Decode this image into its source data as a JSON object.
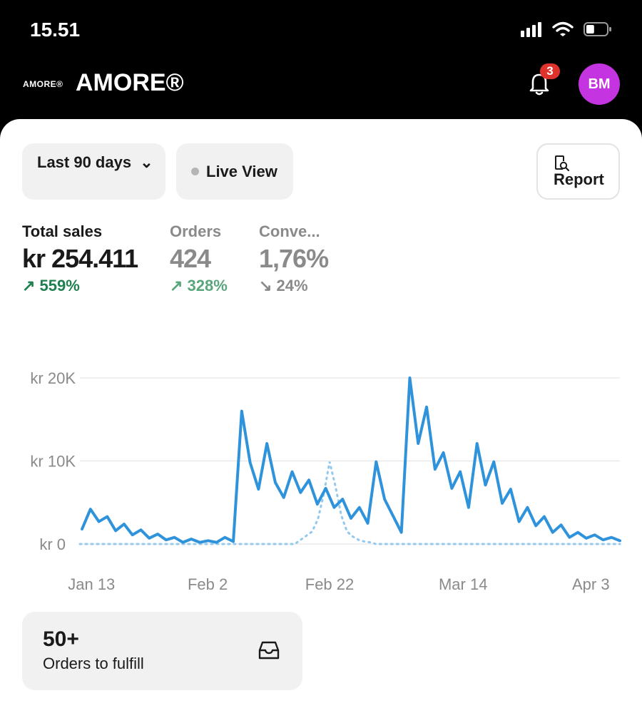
{
  "status_bar": {
    "time": "15.51",
    "battery_level": 0.4
  },
  "header": {
    "logo_text": "AMORE®",
    "store_name": "AMORE®",
    "notification_count": "3",
    "avatar_initials": "BM"
  },
  "colors": {
    "accent": "#2f93dc",
    "badge": "#e0322d",
    "avatar": "#c434e0",
    "positive": "#1e7f4f"
  },
  "filters": {
    "date_range": "Last 90 days",
    "live_view": "Live View",
    "report": "Report"
  },
  "metrics": [
    {
      "label": "Total sales",
      "value": "kr 254.411",
      "change": "↗ 559%"
    },
    {
      "label": "Orders",
      "value": "424",
      "change": "↗ 328%"
    },
    {
      "label": "Conve...",
      "value": "1,76%",
      "change": "↘ 24%"
    }
  ],
  "chart_data": {
    "type": "line",
    "y_tick_labels": [
      "kr 20K",
      "kr 10K",
      "kr 0"
    ],
    "y_ticks": [
      20000,
      10000,
      0
    ],
    "x_tick_labels": [
      "Jan 13",
      "Feb 2",
      "Feb 22",
      "Mar 14",
      "Apr 3"
    ],
    "x_tick_index": [
      2,
      22,
      43,
      66,
      88
    ],
    "ylim": [
      0,
      20000
    ],
    "grid": true,
    "series": [
      {
        "style": "solid",
        "values": [
          1800,
          4200,
          2700,
          3300,
          1600,
          2400,
          1100,
          1700,
          700,
          1200,
          500,
          800,
          200,
          600,
          200,
          400,
          200,
          800,
          300,
          16000,
          9800,
          6600,
          12100,
          7400,
          5600,
          8700,
          6200,
          7700,
          4800,
          6700,
          4400,
          5400,
          3100,
          4400,
          2500,
          9900,
          5400,
          3400,
          1400,
          20000,
          12100,
          16500,
          9000,
          11000,
          6700,
          8700,
          4400,
          12100,
          7100,
          9900,
          4900,
          6600,
          2700,
          4400,
          2200,
          3300,
          1400,
          2300,
          800,
          1400,
          700,
          1100,
          500,
          800,
          400
        ],
        "index_of_first_value": 0
      },
      {
        "style": "dotted",
        "values": [
          0,
          0,
          0,
          0,
          0,
          0,
          0,
          0,
          0,
          0,
          0,
          0,
          0,
          0,
          0,
          0,
          0,
          0,
          0,
          0,
          0,
          0,
          0,
          0,
          0,
          0,
          0,
          0,
          0,
          0,
          0,
          0,
          0,
          0,
          0,
          0,
          0,
          0,
          0,
          0,
          0,
          0,
          0,
          0,
          0,
          0,
          0,
          0,
          0,
          0,
          0,
          0,
          0,
          0,
          0,
          0,
          0,
          0,
          0,
          0,
          0,
          0,
          0,
          0,
          0,
          0,
          0,
          0,
          0,
          0,
          0,
          0,
          0,
          0,
          0,
          0,
          0,
          0,
          0,
          0,
          0,
          0,
          0,
          0,
          0,
          0,
          0,
          0,
          0,
          0,
          0,
          0,
          0,
          0
        ]
      }
    ]
  },
  "fulfill_card": {
    "count": "50+",
    "label": "Orders to fulfill"
  }
}
